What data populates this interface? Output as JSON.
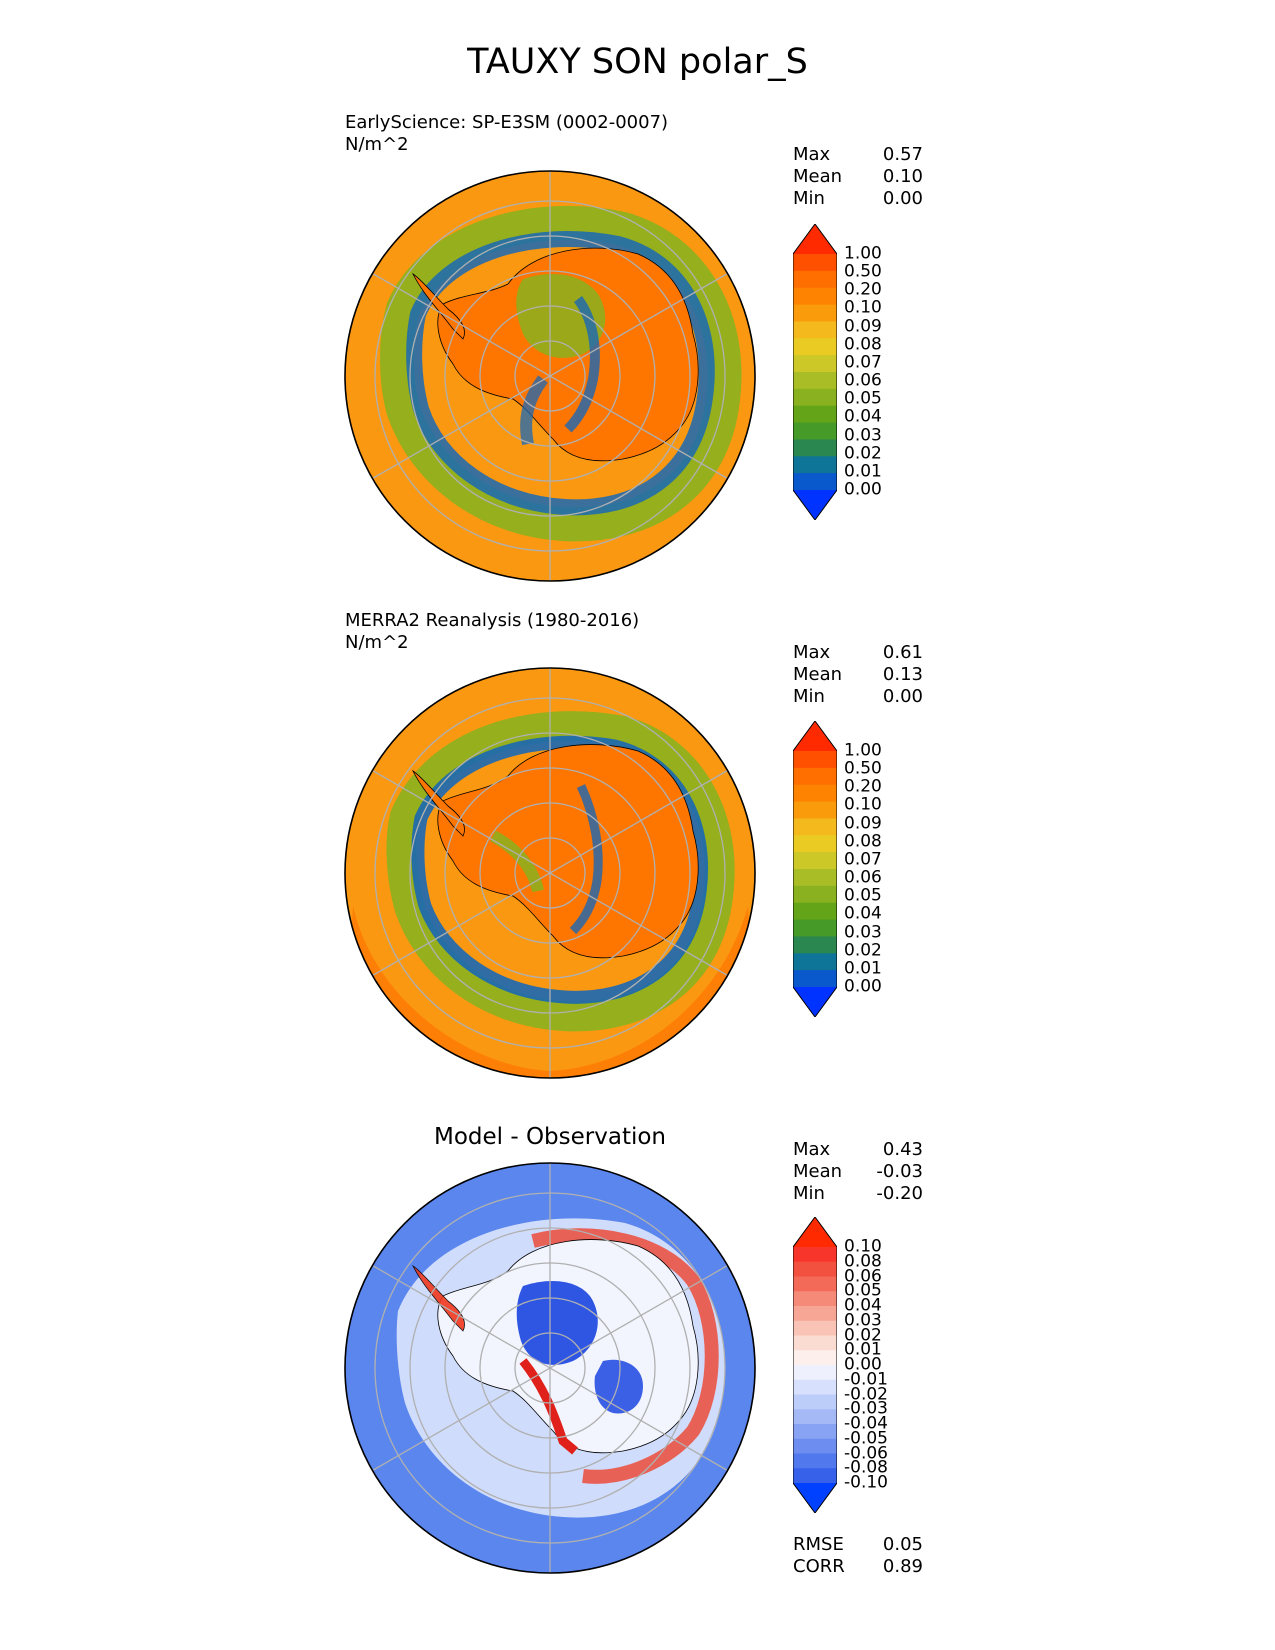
{
  "figure": {
    "title": "TAUXY SON polar_S"
  },
  "panels": [
    {
      "id": "test",
      "title_line1": "EarlyScience: SP-E3SM (0002-0007)",
      "title_line2": "N/m^2",
      "stats": [
        {
          "label": "Max",
          "value": "0.57"
        },
        {
          "label": "Mean",
          "value": "0.10"
        },
        {
          "label": "Min",
          "value": "0.00"
        }
      ]
    },
    {
      "id": "ref",
      "title_line1": "MERRA2 Reanalysis (1980-2016)",
      "title_line2": "N/m^2",
      "stats": [
        {
          "label": "Max",
          "value": "0.61"
        },
        {
          "label": "Mean",
          "value": "0.13"
        },
        {
          "label": "Min",
          "value": "0.00"
        }
      ]
    },
    {
      "id": "diff",
      "title_line1": "Model - Observation",
      "stats": [
        {
          "label": "Max",
          "value": "0.43"
        },
        {
          "label": "Mean",
          "value": "-0.03"
        },
        {
          "label": "Min",
          "value": "-0.20"
        }
      ],
      "metrics": [
        {
          "label": "RMSE",
          "value": "0.05"
        },
        {
          "label": "CORR",
          "value": "0.89"
        }
      ]
    }
  ],
  "colorbars": {
    "field": {
      "levels": [
        "1.00",
        "0.50",
        "0.20",
        "0.10",
        "0.09",
        "0.08",
        "0.07",
        "0.06",
        "0.05",
        "0.04",
        "0.03",
        "0.02",
        "0.01",
        "0.00"
      ],
      "colors": [
        "#ff2a00",
        "#ff5000",
        "#fe6f00",
        "#fd8300",
        "#f99b0a",
        "#f4b91c",
        "#e9cb24",
        "#cbc827",
        "#a9bd26",
        "#8ab11f",
        "#64a418",
        "#469a28",
        "#2a8750",
        "#0f7598",
        "#0a59cc",
        "#0033ff"
      ]
    },
    "diff": {
      "levels": [
        "0.10",
        "0.08",
        "0.06",
        "0.05",
        "0.04",
        "0.03",
        "0.02",
        "0.01",
        "0.00",
        "-0.01",
        "-0.02",
        "-0.03",
        "-0.04",
        "-0.05",
        "-0.06",
        "-0.08",
        "-0.10"
      ],
      "colors": [
        "#ff2a00",
        "#f7352a",
        "#f3513f",
        "#f36b58",
        "#f58a78",
        "#f7a696",
        "#f9c3b6",
        "#fbdcd2",
        "#fdf0ec",
        "#eef1fd",
        "#d7e0fc",
        "#bdcdfa",
        "#a4b9f6",
        "#88a3f3",
        "#6d8ef0",
        "#5178ec",
        "#3661e8",
        "#0040ff"
      ]
    }
  },
  "map_colors": {
    "ocean_orange": "#fb9811",
    "deep_orange": "#fe7500",
    "green": "#8ab11f",
    "blue": "#1a68b5",
    "teal": "#2a8750",
    "diff_bg": "#5a86ee",
    "diff_light": "#e4ebfd",
    "diff_red": "#f0381f",
    "grid": "#b0b0b0"
  }
}
